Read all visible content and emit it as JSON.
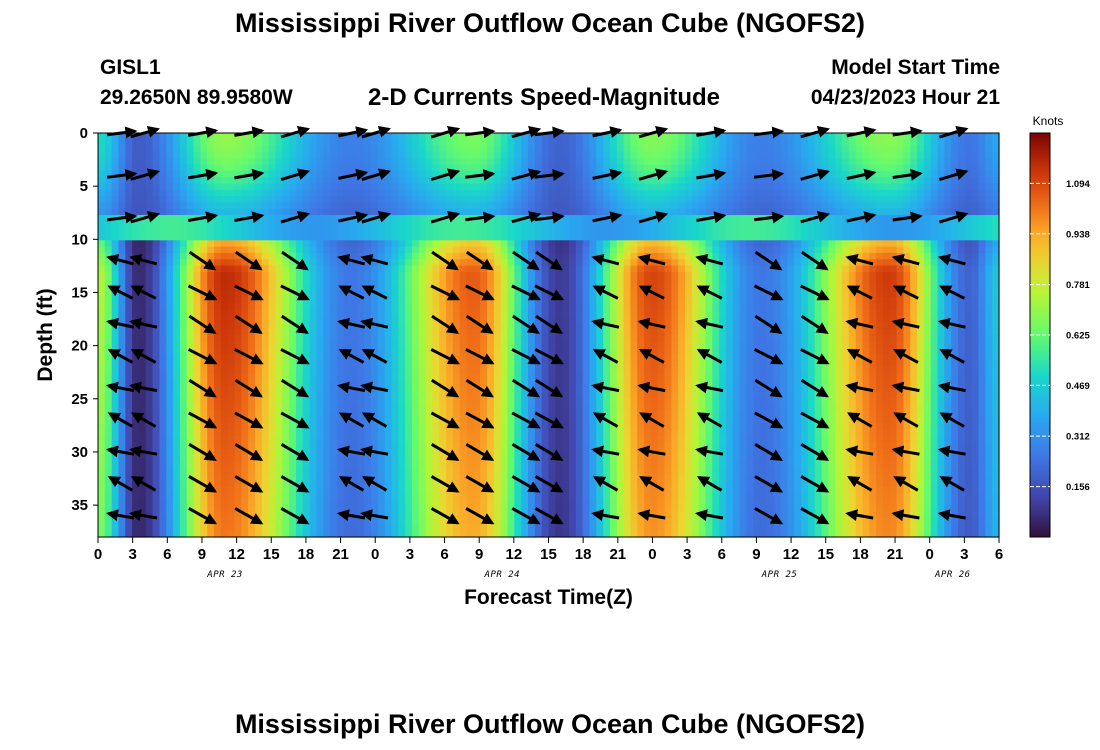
{
  "header": {
    "title": "Mississippi River Outflow Ocean Cube (NGOFS2)",
    "station": "GISL1",
    "coordinates": "29.2650N  89.9580W",
    "variable": "2-D Currents Speed-Magnitude",
    "model_start_label": "Model Start Time",
    "model_start_value": "04/23/2023 Hour 21"
  },
  "footer": {
    "title": "Mississippi River Outflow Ocean Cube (NGOFS2)"
  },
  "chart_data": {
    "type": "heatmap",
    "xlabel": "Forecast Time(Z)",
    "ylabel": "Depth (ft)",
    "x_ticks": [
      "0",
      "3",
      "6",
      "9",
      "12",
      "15",
      "18",
      "21",
      "0",
      "3",
      "6",
      "9",
      "12",
      "15",
      "18",
      "21",
      "0",
      "3",
      "6",
      "9",
      "12",
      "15",
      "18",
      "21",
      "0",
      "3",
      "6"
    ],
    "x_dates": [
      {
        "label": "APR 23",
        "hour": 11
      },
      {
        "label": "APR 24",
        "hour": 35
      },
      {
        "label": "APR 25",
        "hour": 59
      },
      {
        "label": "APR 26",
        "hour": 74
      }
    ],
    "xlim_hours": [
      0,
      78
    ],
    "y_ticks": [
      0,
      5,
      10,
      15,
      20,
      25,
      30,
      35
    ],
    "ylim": [
      38,
      0
    ],
    "colorbar": {
      "unit": "Knots",
      "ticks": [
        1.094,
        0.938,
        0.781,
        0.625,
        0.469,
        0.312,
        0.156
      ],
      "range": [
        0,
        1.25
      ],
      "colormap": "turbo"
    },
    "speed_peaks": [
      {
        "hour": 11,
        "speed": 1.15
      },
      {
        "hour": 32.5,
        "speed": 1.06
      },
      {
        "hour": 48,
        "speed": 1.1
      },
      {
        "hour": 68.5,
        "speed": 1.12
      }
    ],
    "slack_minima": [
      {
        "hour": 3.5,
        "speed": 0.06
      },
      {
        "hour": 22,
        "speed": 0.25
      },
      {
        "hour": 40,
        "speed": 0.1
      },
      {
        "hour": 57.5,
        "speed": 0.25
      },
      {
        "hour": 75.5,
        "speed": 0.2
      }
    ],
    "vector_columns_hours": [
      2,
      4,
      9,
      13,
      17,
      22,
      24,
      30,
      33,
      37,
      39,
      44,
      48,
      53,
      58,
      62,
      66,
      70,
      74
    ],
    "vector_rows_depth_ft": [
      0,
      4,
      8,
      12,
      15,
      18,
      21,
      24,
      27,
      30,
      33,
      36
    ]
  }
}
